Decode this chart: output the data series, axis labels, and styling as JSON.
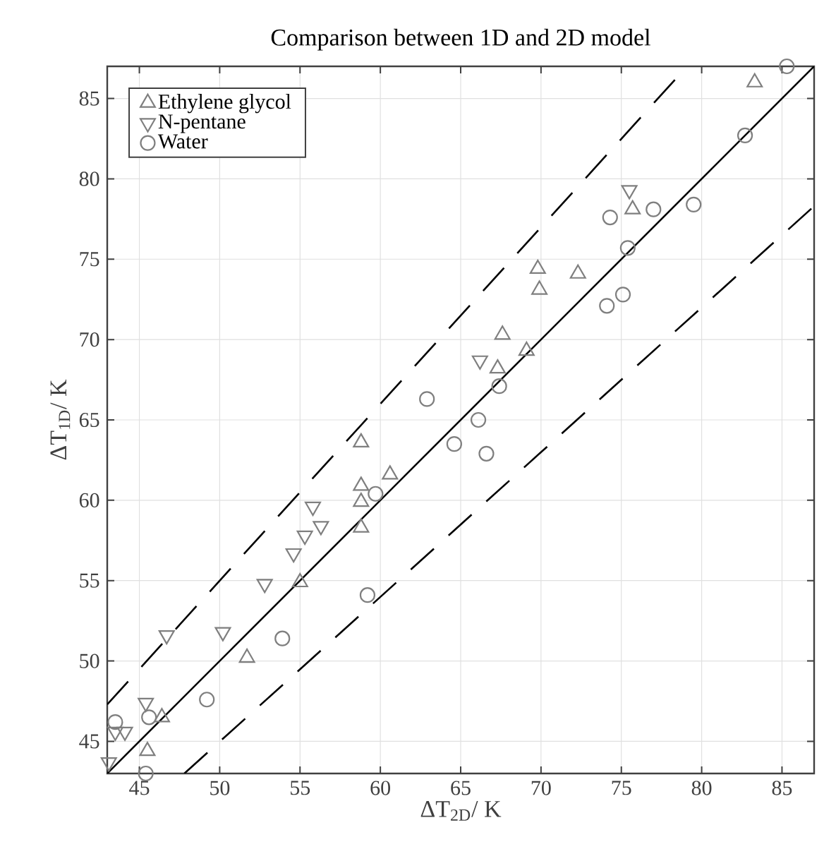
{
  "chart_data": {
    "type": "scatter",
    "title": "Comparison between 1D and 2D model",
    "xlabel": "ΔT$_{2D}$/ K",
    "ylabel": "ΔT$_{1D}$/ K",
    "xlim": [
      43,
      87
    ],
    "ylim": [
      43,
      87
    ],
    "xticks": [
      45,
      50,
      55,
      60,
      65,
      70,
      75,
      80,
      85
    ],
    "yticks": [
      45,
      50,
      55,
      60,
      65,
      70,
      75,
      80,
      85
    ],
    "grid": true,
    "legend": "top left",
    "series": [
      {
        "name": "Ethylene glycol",
        "color": "#7f7f7f",
        "marker": "triangle",
        "x": [
          58.8,
          58.8,
          58.8,
          58.8,
          60.6,
          55.0,
          51.7,
          46.4,
          45.5,
          83.3,
          75.7,
          69.8,
          69.9,
          72.3,
          67.6,
          69.1,
          67.3
        ],
        "values": [
          63.6,
          60.9,
          59.9,
          58.3,
          61.6,
          54.9,
          50.2,
          46.5,
          44.4,
          86.0,
          78.1,
          74.4,
          73.1,
          74.1,
          70.3,
          69.3,
          68.2
        ]
      },
      {
        "name": "N-pentane",
        "color": "#7f7f7f",
        "marker": "triangle-down",
        "x": [
          55.8,
          56.3,
          55.3,
          54.6,
          52.8,
          50.2,
          46.7,
          45.4,
          43.5,
          44.1,
          43.1,
          75.5,
          66.2
        ],
        "values": [
          59.6,
          58.4,
          57.8,
          56.7,
          54.8,
          51.8,
          51.6,
          47.4,
          45.6,
          45.6,
          43.7,
          79.3,
          68.7
        ]
      },
      {
        "name": "Water",
        "color": "#7f7f7f",
        "marker": "circle",
        "x": [
          85.3,
          82.7,
          79.5,
          77.0,
          74.3,
          75.4,
          74.1,
          75.1,
          67.4,
          62.9,
          66.1,
          64.6,
          66.6,
          59.7,
          59.2,
          53.9,
          49.2,
          45.6,
          43.5,
          45.4
        ],
        "values": [
          87.0,
          82.7,
          78.4,
          78.1,
          77.6,
          75.7,
          72.1,
          72.8,
          67.1,
          66.3,
          65.0,
          63.5,
          62.9,
          60.4,
          54.1,
          51.4,
          47.6,
          46.5,
          46.2,
          43.0
        ]
      },
      {
        "type": "line",
        "color": "#000000",
        "line_style": "solid",
        "marker": "none",
        "x": [
          43,
          87
        ],
        "values": [
          43,
          87
        ]
      },
      {
        "type": "line",
        "color": "#000000",
        "line_style": "dashed",
        "marker": "none",
        "x": [
          43,
          79.1
        ],
        "values": [
          47.3,
          87.0
        ]
      },
      {
        "type": "line",
        "color": "#000000",
        "line_style": "dashed",
        "marker": "none",
        "x": [
          47.8,
          87
        ],
        "values": [
          43.0,
          78.3
        ]
      }
    ]
  }
}
